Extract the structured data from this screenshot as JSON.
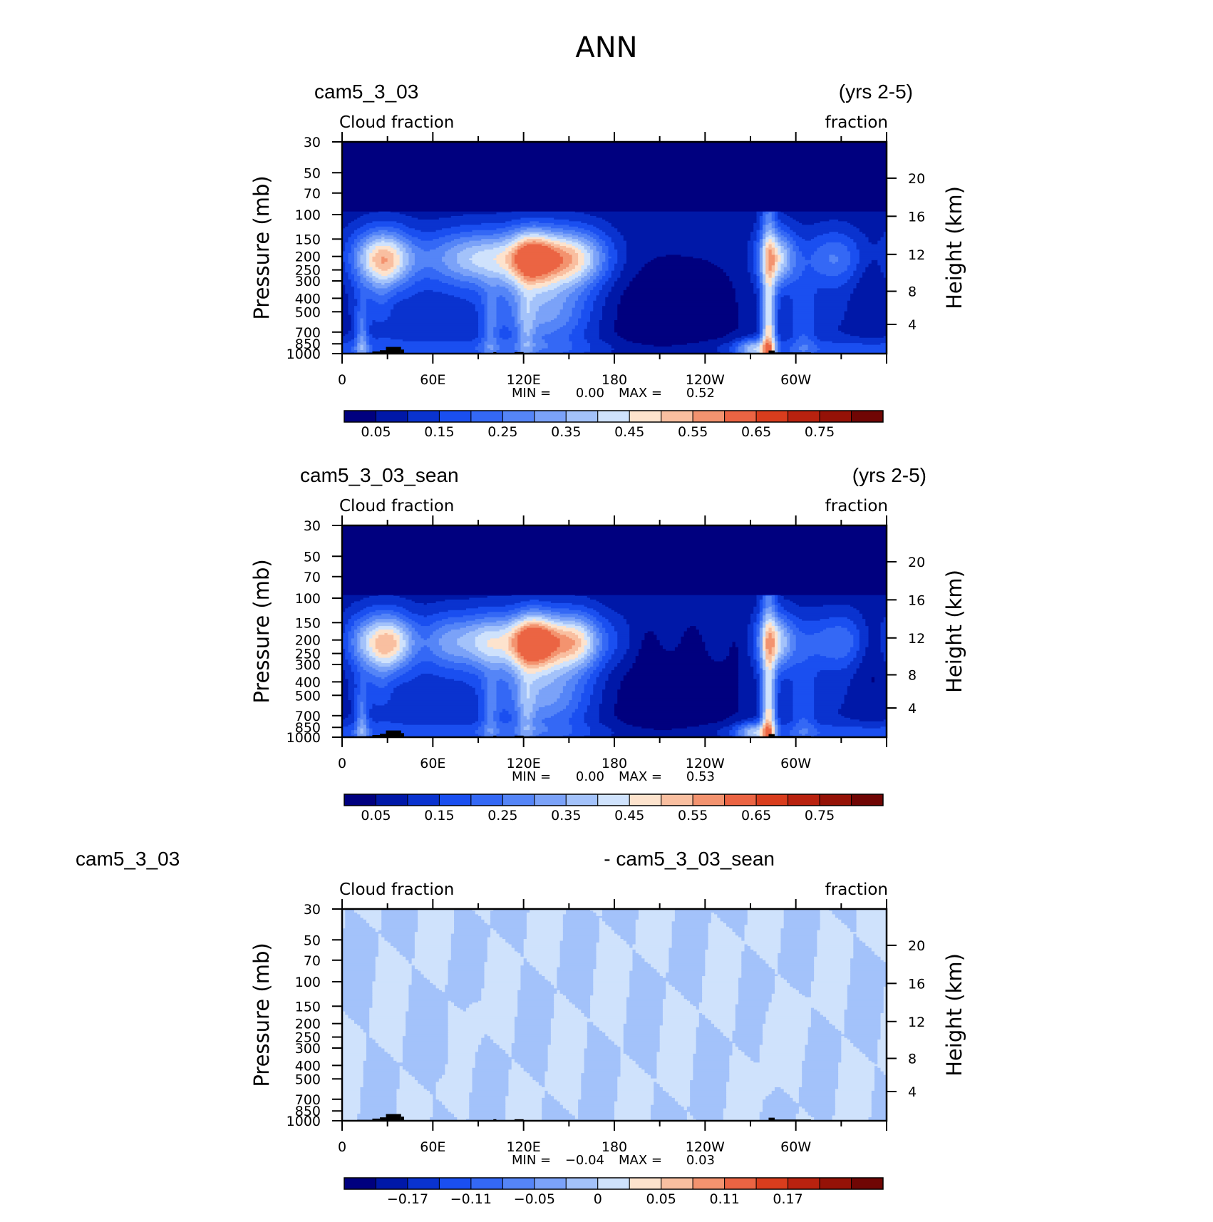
{
  "page_title": "ANN",
  "panels": [
    {
      "case_left": "cam5_3_03",
      "case_right": "(yrs 2-5)",
      "var_left": "Cloud fraction",
      "var_right": "fraction",
      "min_label": "MIN =",
      "min_value": "0.00",
      "max_label": "MAX =",
      "max_value": "0.52",
      "field": "model"
    },
    {
      "case_left": "cam5_3_03_sean",
      "case_right": "(yrs 2-5)",
      "var_left": "Cloud fraction",
      "var_right": "fraction",
      "min_label": "MIN =",
      "min_value": "0.00",
      "max_label": "MAX =",
      "max_value": "0.53",
      "field": "model"
    },
    {
      "case_left": "cam5_3_03",
      "case_right": "- cam5_3_03_sean",
      "var_left": "Cloud fraction",
      "var_right": "fraction",
      "min_label": "MIN =",
      "min_value": "−0.04",
      "max_label": "MAX =",
      "max_value": "0.03",
      "field": "difference"
    }
  ],
  "chart_data": [
    {
      "type": "heatmap",
      "title": "cam5_3_03",
      "xlabel": "",
      "ylabel": "Pressure (mb)",
      "y2label": "Height (km)",
      "x_ticks": [
        "0",
        "60E",
        "120E",
        "180",
        "120W",
        "60W"
      ],
      "x_tick_values": [
        0,
        60,
        120,
        180,
        240,
        300
      ],
      "xlim": [
        0,
        360
      ],
      "y_ticks": [
        "30",
        "50",
        "70",
        "100",
        "150",
        "200",
        "250",
        "300",
        "400",
        "500",
        "700",
        "850",
        "1000"
      ],
      "y_tick_values": [
        30,
        50,
        70,
        100,
        150,
        200,
        250,
        300,
        400,
        500,
        700,
        850,
        1000
      ],
      "ylim": [
        1000,
        30
      ],
      "y_scale": "log",
      "y2_ticks": [
        "20",
        "16",
        "12",
        "8",
        "4"
      ],
      "y2_tick_values": [
        20,
        16,
        12,
        8,
        4
      ],
      "min": 0.0,
      "max": 0.52,
      "colorbar_labels": [
        "0.05",
        "0.15",
        "0.25",
        "0.35",
        "0.45",
        "0.55",
        "0.65",
        "0.75"
      ],
      "colorbar_levels": [
        0.0,
        0.05,
        0.1,
        0.15,
        0.2,
        0.25,
        0.3,
        0.35,
        0.4,
        0.45,
        0.5,
        0.55,
        0.6,
        0.65,
        0.7,
        0.75,
        0.8
      ]
    },
    {
      "type": "heatmap",
      "title": "cam5_3_03_sean",
      "xlabel": "",
      "ylabel": "Pressure (mb)",
      "y2label": "Height (km)",
      "x_ticks": [
        "0",
        "60E",
        "120E",
        "180",
        "120W",
        "60W"
      ],
      "x_tick_values": [
        0,
        60,
        120,
        180,
        240,
        300
      ],
      "xlim": [
        0,
        360
      ],
      "y_ticks": [
        "30",
        "50",
        "70",
        "100",
        "150",
        "200",
        "250",
        "300",
        "400",
        "500",
        "700",
        "850",
        "1000"
      ],
      "y_tick_values": [
        30,
        50,
        70,
        100,
        150,
        200,
        250,
        300,
        400,
        500,
        700,
        850,
        1000
      ],
      "ylim": [
        1000,
        30
      ],
      "y_scale": "log",
      "y2_ticks": [
        "20",
        "16",
        "12",
        "8",
        "4"
      ],
      "y2_tick_values": [
        20,
        16,
        12,
        8,
        4
      ],
      "min": 0.0,
      "max": 0.53,
      "colorbar_labels": [
        "0.05",
        "0.15",
        "0.25",
        "0.35",
        "0.45",
        "0.55",
        "0.65",
        "0.75"
      ],
      "colorbar_levels": [
        0.0,
        0.05,
        0.1,
        0.15,
        0.2,
        0.25,
        0.3,
        0.35,
        0.4,
        0.45,
        0.5,
        0.55,
        0.6,
        0.65,
        0.7,
        0.75,
        0.8
      ]
    },
    {
      "type": "heatmap",
      "title": "cam5_3_03 - cam5_3_03_sean",
      "xlabel": "",
      "ylabel": "Pressure (mb)",
      "y2label": "Height (km)",
      "x_ticks": [
        "0",
        "60E",
        "120E",
        "180",
        "120W",
        "60W"
      ],
      "x_tick_values": [
        0,
        60,
        120,
        180,
        240,
        300
      ],
      "xlim": [
        0,
        360
      ],
      "y_ticks": [
        "30",
        "50",
        "70",
        "100",
        "150",
        "200",
        "250",
        "300",
        "400",
        "500",
        "700",
        "850",
        "1000"
      ],
      "y_tick_values": [
        30,
        50,
        70,
        100,
        150,
        200,
        250,
        300,
        400,
        500,
        700,
        850,
        1000
      ],
      "ylim": [
        1000,
        30
      ],
      "y_scale": "log",
      "y2_ticks": [
        "20",
        "16",
        "12",
        "8",
        "4"
      ],
      "y2_tick_values": [
        20,
        16,
        12,
        8,
        4
      ],
      "min": -0.04,
      "max": 0.03,
      "colorbar_labels": [
        "−0.17",
        "−0.11",
        "−0.05",
        "0",
        "0.05",
        "0.11",
        "0.17"
      ],
      "colorbar_levels": [
        -0.23,
        -0.2,
        -0.17,
        -0.14,
        -0.11,
        -0.08,
        -0.05,
        -0.02,
        0.0,
        0.02,
        0.05,
        0.08,
        0.11,
        0.14,
        0.17,
        0.2,
        0.23
      ]
    }
  ],
  "colors": {
    "palette": [
      "#00007f",
      "#0018a8",
      "#0a33cf",
      "#1a4ff0",
      "#3468f5",
      "#5585f7",
      "#7ba2f8",
      "#a3c2fa",
      "#cfe2fc",
      "#fde3cd",
      "#f9bfa0",
      "#f3936f",
      "#eb6443",
      "#d93d1d",
      "#b9220f",
      "#951207",
      "#700604"
    ],
    "land": "#000000",
    "frame": "#000000"
  }
}
